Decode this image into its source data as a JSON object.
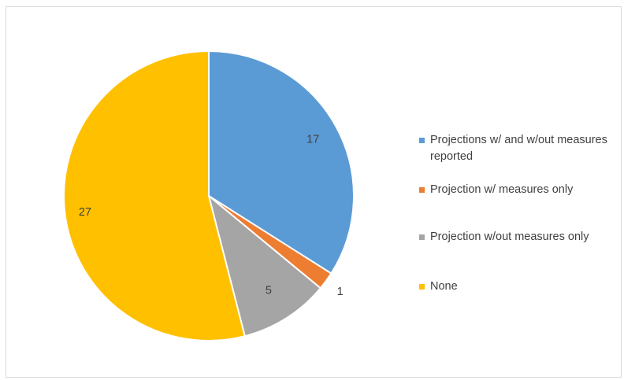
{
  "chart_data": {
    "type": "pie",
    "title": "",
    "slices": [
      {
        "label": "Projections w/ and w/out measures reported",
        "value": 17,
        "color": "#5b9bd5"
      },
      {
        "label": "Projection w/ measures only",
        "value": 1,
        "color": "#ed7d31"
      },
      {
        "label": "Projection w/out measures only",
        "value": 5,
        "color": "#a5a5a5"
      },
      {
        "label": "None",
        "value": 27,
        "color": "#ffc000"
      }
    ],
    "data_labels": [
      "17",
      "1",
      "5",
      "27"
    ],
    "legend_position": "right"
  }
}
